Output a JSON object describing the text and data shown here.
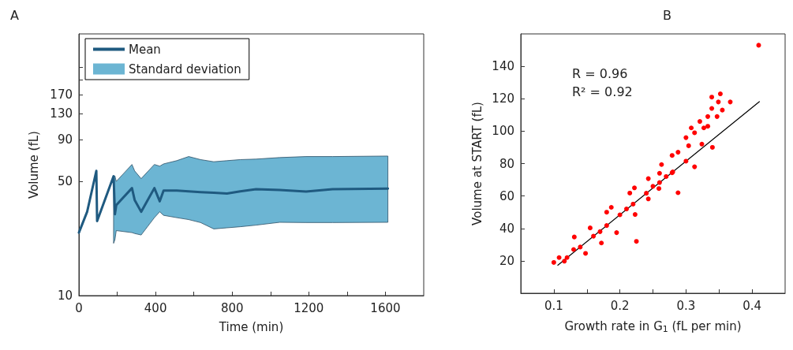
{
  "chart_data": [
    {
      "type": "line",
      "title": "A",
      "xlabel": "Time (min)",
      "ylabel": "Volume (fL)",
      "log": "y",
      "xlim": [
        0,
        1800
      ],
      "xticks": [
        0,
        {
          "value": 200,
          "label": null
        },
        400,
        {
          "value": 600,
          "label": null
        },
        800,
        {
          "value": 1000,
          "label": null
        },
        1200,
        {
          "value": 1400,
          "label": null
        },
        1600
      ],
      "ylim": [
        10,
        400
      ],
      "yticks": [
        10,
        50,
        90,
        130,
        170,
        {
          "value": 210,
          "label": null
        },
        {
          "value": 250,
          "label": null
        }
      ],
      "grid": false,
      "legend": "top left",
      "marker": "none",
      "line_style": "solid",
      "series": [
        {
          "name": "Mean",
          "color": "#1f5a80",
          "x": [
            0,
            43,
            91,
            95,
            181,
            188,
            195,
            277,
            291,
            325,
            394,
            422,
            442,
            511,
            573,
            635,
            704,
            773,
            842,
            925,
            1048,
            1186,
            1324,
            1613
          ],
          "values": [
            24.3,
            32.6,
            58,
            28.6,
            53.8,
            31.5,
            35.8,
            45.5,
            38.5,
            32.6,
            45.5,
            37.8,
            44,
            44,
            43.5,
            43,
            42.6,
            42.2,
            43.5,
            44.8,
            44.3,
            43.4,
            44.8,
            45.2
          ]
        },
        {
          "name": "Standard deviation",
          "type": "area",
          "color": "#6cb5d3",
          "x": [
            181,
            188,
            195,
            277,
            291,
            325,
            394,
            422,
            442,
            511,
            573,
            635,
            704,
            773,
            842,
            925,
            1048,
            1186,
            1324,
            1613
          ],
          "values": [
            null,
            null,
            null,
            null,
            null,
            null,
            null,
            null,
            null,
            null,
            null,
            null,
            null,
            null,
            null,
            null,
            null,
            null,
            null,
            null
          ],
          "lower": [
            20.9,
            22,
            25,
            24.3,
            24,
            23.5,
            30,
            32.6,
            31,
            30,
            29.2,
            28,
            25.6,
            26,
            26.4,
            27,
            28.1,
            28,
            28,
            28.1
          ],
          "upper": [
            53.8,
            54,
            50,
            63.5,
            58,
            52,
            63.5,
            62,
            64,
            67,
            71,
            68,
            66,
            67,
            68,
            68.5,
            70,
            71,
            71,
            71.5
          ]
        }
      ]
    },
    {
      "type": "scatter",
      "title": "B",
      "xlabel": "Growth rate in G$_{1}$ (fL per min)",
      "ylabel": "Volume at START (fL)",
      "xlim": [
        0.05,
        0.45
      ],
      "xticks": [
        0.1,
        {
          "value": 0.15,
          "label": null
        },
        0.2,
        {
          "value": 0.25,
          "label": null
        },
        0.3,
        {
          "value": 0.35,
          "label": null
        },
        0.4
      ],
      "ylim": [
        0,
        160
      ],
      "yticks": [
        20,
        40,
        60,
        80,
        100,
        120,
        140
      ],
      "grid": false,
      "marker": "circle",
      "annotations": [
        "R = 0.96",
        "R² = 0.92"
      ],
      "series": [
        {
          "color": "#ff0000",
          "x": [
            0.108,
            0.131,
            0.155,
            0.187,
            0.215,
            0.243,
            0.263,
            0.279,
            0.116,
            0.148,
            0.172,
            0.195,
            0.223,
            0.243,
            0.259,
            0.279,
            0.12,
            0.14,
            0.16,
            0.18,
            0.2,
            0.22,
            0.24,
            0.26,
            0.28,
            0.3,
            0.41,
            0.339,
            0.352,
            0.367,
            0.339,
            0.355,
            0.349,
            0.347,
            0.333,
            0.321,
            0.308,
            0.327,
            0.333,
            0.313,
            0.3,
            0.324,
            0.34,
            0.304,
            0.288,
            0.313,
            0.288,
            0.225,
            0.18,
            0.222,
            0.26,
            0.1,
            0.13,
            0.17,
            0.21,
            0.25,
            0.27
          ],
          "values": [
            22,
            34.7,
            40.3,
            53,
            61.8,
            70.7,
            79.4,
            85,
            19.8,
            24.6,
            31,
            37.4,
            48.6,
            58.2,
            64.6,
            74.3,
            22,
            28.5,
            35.2,
            41.8,
            48.4,
            55,
            61.7,
            68.3,
            74.9,
            81.5,
            153,
            121,
            123,
            118,
            114,
            113,
            118,
            109,
            109,
            106,
            102,
            102,
            103,
            99,
            96,
            92,
            90,
            91,
            87,
            78,
            62,
            32,
            50,
            65,
            74,
            19,
            27,
            38,
            52,
            66,
            72
          ]
        },
        {
          "type": "line",
          "color": "#000000",
          "marker": "none",
          "x": [
            0.106,
            0.411
          ],
          "values": [
            17.3,
            118.2
          ]
        }
      ]
    }
  ]
}
